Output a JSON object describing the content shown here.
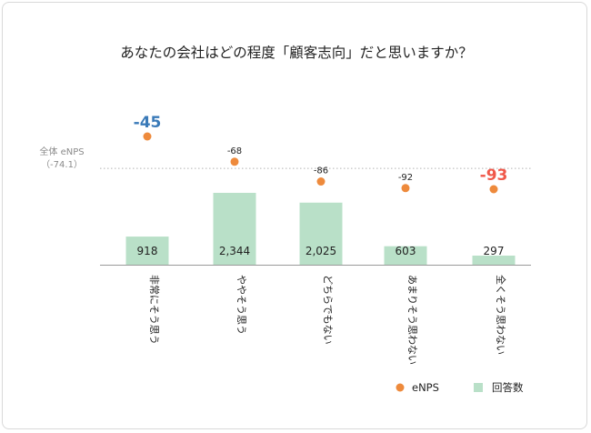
{
  "chart_data": {
    "type": "bar",
    "title": "あなたの会社はどの程度「顧客志向」だと思いますか？",
    "categories": [
      "非常にそう思う",
      "ややそう思う",
      "どちらでもない",
      "あまりそう思わない",
      "全くそう思わない"
    ],
    "series": [
      {
        "name": "回答数",
        "type": "bar",
        "values": [
          918,
          2344,
          2025,
          603,
          297
        ],
        "labels": [
          "918",
          "2,344",
          "2,025",
          "603",
          "297"
        ],
        "color": "#b9e0c8"
      },
      {
        "name": "eNPS",
        "type": "scatter",
        "values": [
          -45,
          -68,
          -86,
          -92,
          -93
        ],
        "labels": [
          "-45",
          "-68",
          "-86",
          "-92",
          "-93"
        ],
        "color": "#ee8a3c"
      }
    ],
    "reference_line": {
      "label_line1": "全体 eNPS",
      "label_line2": "（-74.1）",
      "value": -74.1
    },
    "highlight": {
      "max_color": "#3a7ab8",
      "min_color": "#f0584a"
    },
    "legend": {
      "placement": "bottom-right",
      "items": [
        "eNPS",
        "回答数"
      ]
    },
    "grid": false
  }
}
